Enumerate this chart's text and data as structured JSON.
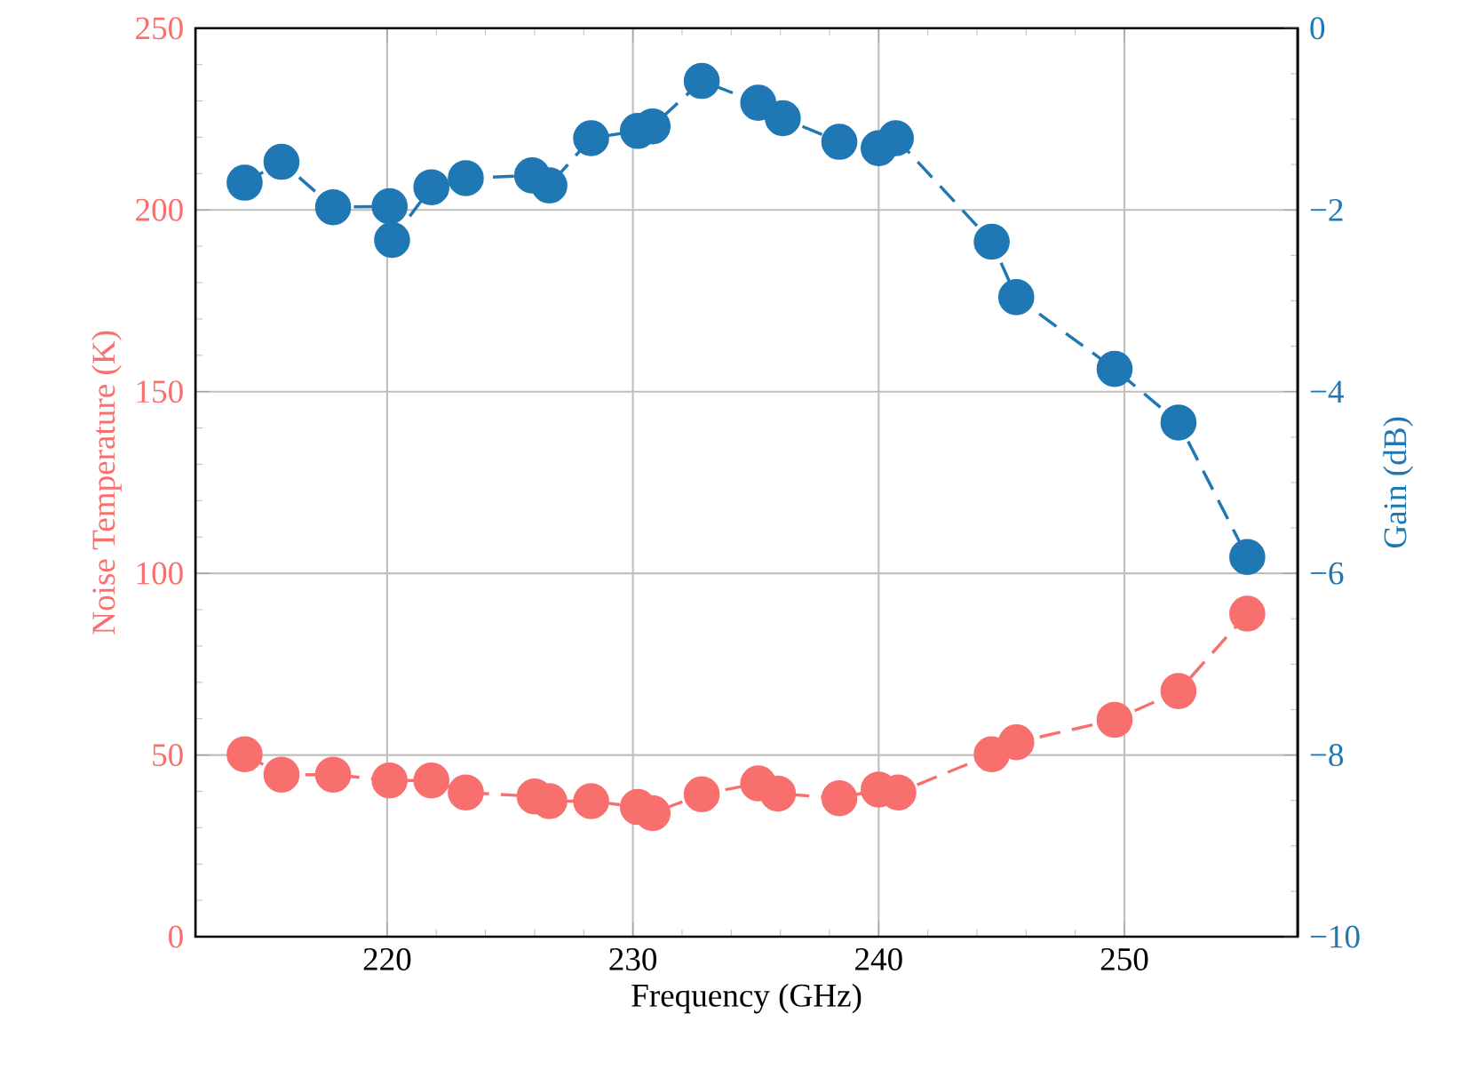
{
  "chart_data": {
    "type": "line",
    "xlabel": "Frequency (GHz)",
    "ylabel": "Noise Temperature (K)",
    "y2label": "Gain (dB)",
    "xlim": [
      212.2,
      257.05
    ],
    "xticks": [
      220,
      230,
      240,
      250
    ],
    "ylim": [
      0,
      250
    ],
    "yticks": [
      0,
      50,
      100,
      150,
      200,
      250
    ],
    "y2lim": [
      -10,
      0
    ],
    "y2ticks": [
      {
        "value": -10,
        "label": "−10"
      },
      {
        "value": -8,
        "label": "−8"
      },
      {
        "value": -6,
        "label": "−6"
      },
      {
        "value": -4,
        "label": "−4"
      },
      {
        "value": -2,
        "label": "−2"
      },
      {
        "value": 0,
        "label": "0"
      }
    ],
    "grid": true,
    "marker": "circle",
    "line_style": "dashed",
    "series": [
      {
        "axis": "y",
        "color": "#f8706e",
        "x": [
          214.2,
          215.7,
          217.8,
          220.1,
          221.8,
          223.2,
          226.0,
          226.6,
          228.3,
          230.2,
          230.8,
          232.8,
          235.1,
          235.9,
          238.4,
          240.0,
          240.8,
          244.6,
          245.6,
          249.6,
          252.2,
          255.0
        ],
        "values": [
          50.2,
          44.6,
          44.6,
          43.0,
          43.0,
          39.7,
          38.6,
          37.3,
          37.3,
          35.7,
          34.0,
          39.2,
          42.2,
          39.4,
          38.1,
          40.5,
          39.7,
          50.2,
          53.5,
          59.7,
          67.6,
          88.9
        ]
      },
      {
        "axis": "y2",
        "color": "#1f77b4",
        "x": [
          214.2,
          215.7,
          217.8,
          220.1,
          220.2,
          221.8,
          223.2,
          225.9,
          226.6,
          228.3,
          230.2,
          230.8,
          232.8,
          235.1,
          236.1,
          238.4,
          240.0,
          240.7,
          244.6,
          245.6,
          249.6,
          252.2,
          255.0
        ],
        "values": [
          -1.7,
          -1.47,
          -1.97,
          -1.96,
          -2.33,
          -1.75,
          -1.65,
          -1.62,
          -1.73,
          -1.21,
          -1.13,
          -1.08,
          -0.58,
          -0.82,
          -0.99,
          -1.25,
          -1.32,
          -1.21,
          -2.35,
          -2.96,
          -3.75,
          -4.34,
          -5.82
        ]
      }
    ]
  }
}
